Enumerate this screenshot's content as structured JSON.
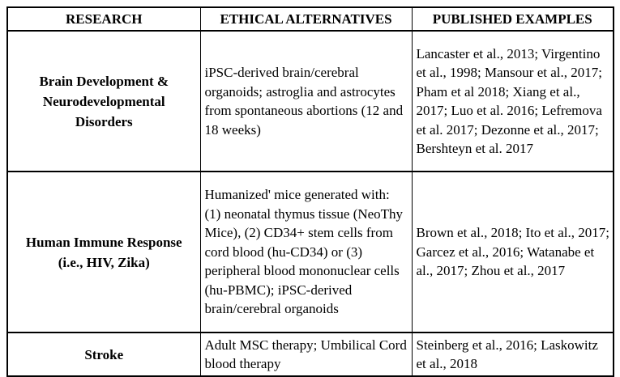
{
  "colors": {
    "text": "#000000",
    "border": "#000000",
    "background": "#ffffff"
  },
  "document": {
    "table": {
      "headers": {
        "research": "RESEARCH",
        "alternatives": "ETHICAL ALTERNATIVES",
        "examples": "PUBLISHED EXAMPLES"
      },
      "rows": [
        {
          "research": "Brain Development & Neurodevelopmental Disorders",
          "alternatives": "iPSC-derived brain/cerebral organoids; astroglia and astrocytes from spontaneous abortions (12 and 18 weeks)",
          "examples": "Lancaster et al., 2013; Virgentino et al., 1998; Mansour et al., 2017; Pham et al 2018; Xiang et al., 2017; Luo et al. 2016; Lefremova et al. 2017; Dezonne et al., 2017; Bershteyn et al. 2017"
        },
        {
          "research": "Human Immune Response (i.e., HIV, Zika)",
          "alternatives": "Humanized' mice generated with: (1) neonatal thymus tissue (NeoThy Mice), (2) CD34+ stem cells from cord blood (hu-CD34) or (3) peripheral blood mononuclear cells (hu-PBMC); iPSC-derived brain/cerebral organoids",
          "examples": "Brown et al., 2018; Ito et al., 2017; Garcez et al., 2016; Watanabe et al., 2017; Zhou et al., 2017"
        },
        {
          "research": "Stroke",
          "alternatives": "Adult MSC therapy; Umbilical Cord blood therapy",
          "examples": "Steinberg et al., 2016; Laskowitz et al., 2018"
        }
      ]
    }
  }
}
